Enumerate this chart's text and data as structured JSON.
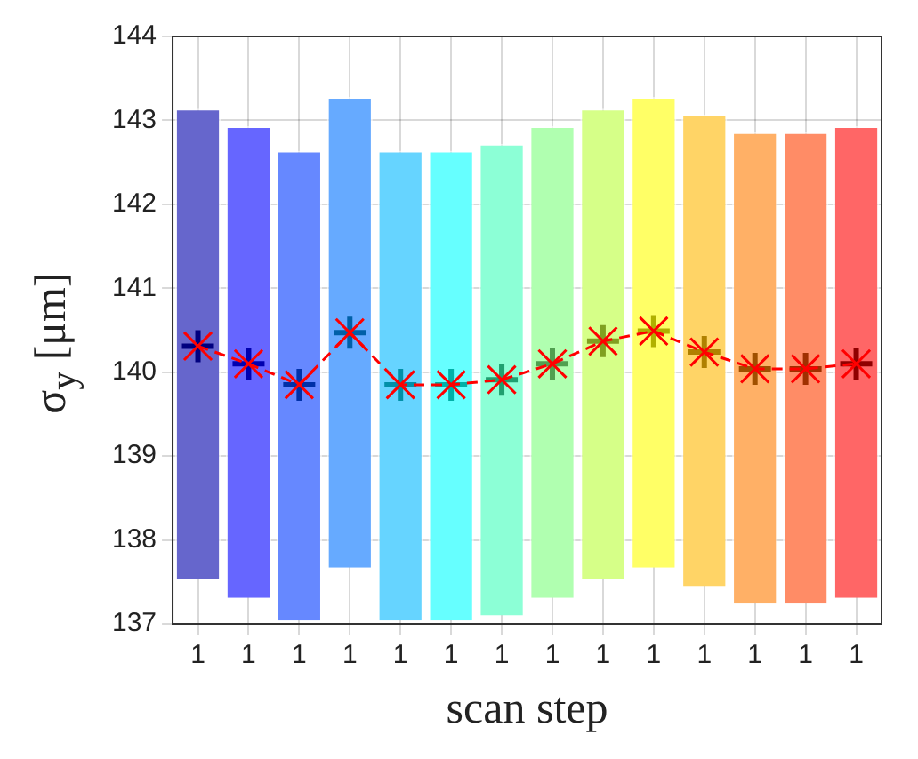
{
  "chart_data": {
    "type": "bar",
    "xlabel": "scan step",
    "ylabel": "σ$_{y}$ [μm]",
    "categories": [
      "1",
      "1",
      "1",
      "1",
      "1",
      "1",
      "1",
      "1",
      "1",
      "1",
      "1",
      "1",
      "1",
      "1"
    ],
    "series": [
      {
        "base": [
          137.53,
          137.31,
          137.04,
          137.67,
          137.04,
          137.04,
          137.1,
          137.31,
          137.53,
          137.67,
          137.45,
          137.24,
          137.24,
          137.31
        ],
        "values": [
          5.61,
          5.62,
          5.6,
          5.61,
          5.6,
          5.6,
          5.62,
          5.62,
          5.61,
          5.61,
          5.62,
          5.62,
          5.62,
          5.62
        ],
        "colors": [
          "#6666cc",
          "#6666ff",
          "#6688ff",
          "#66aaff",
          "#66d4ff",
          "#66ffff",
          "#8cffd6",
          "#b0ffb0",
          "#d6ff88",
          "#ffff66",
          "#ffd466",
          "#ffb066",
          "#ff8c66",
          "#ff6666"
        ]
      },
      {
        "type": "scatter",
        "marker": "cross",
        "values": [
          140.31,
          140.1,
          139.85,
          140.47,
          139.85,
          139.85,
          139.91,
          140.1,
          140.37,
          140.49,
          140.24,
          140.04,
          140.04,
          140.1
        ],
        "colors": [
          "#00007f",
          "#0000b0",
          "#0030a8",
          "#0060a8",
          "#0090a8",
          "#00b0a8",
          "#20a070",
          "#50a050",
          "#80a020",
          "#b0b000",
          "#b08000",
          "#a05000",
          "#a03000",
          "#900000"
        ]
      },
      {
        "type": "line",
        "marker": "cross",
        "line_style": "dashed",
        "color": "#ff0000",
        "values": [
          140.31,
          140.1,
          139.85,
          140.47,
          139.85,
          139.85,
          139.91,
          140.1,
          140.37,
          140.49,
          140.24,
          140.04,
          140.04,
          140.1
        ]
      }
    ],
    "ylim": [
      137,
      144
    ],
    "yticks": [
      137,
      138,
      139,
      140,
      141,
      142,
      143,
      144
    ],
    "grid": true
  }
}
